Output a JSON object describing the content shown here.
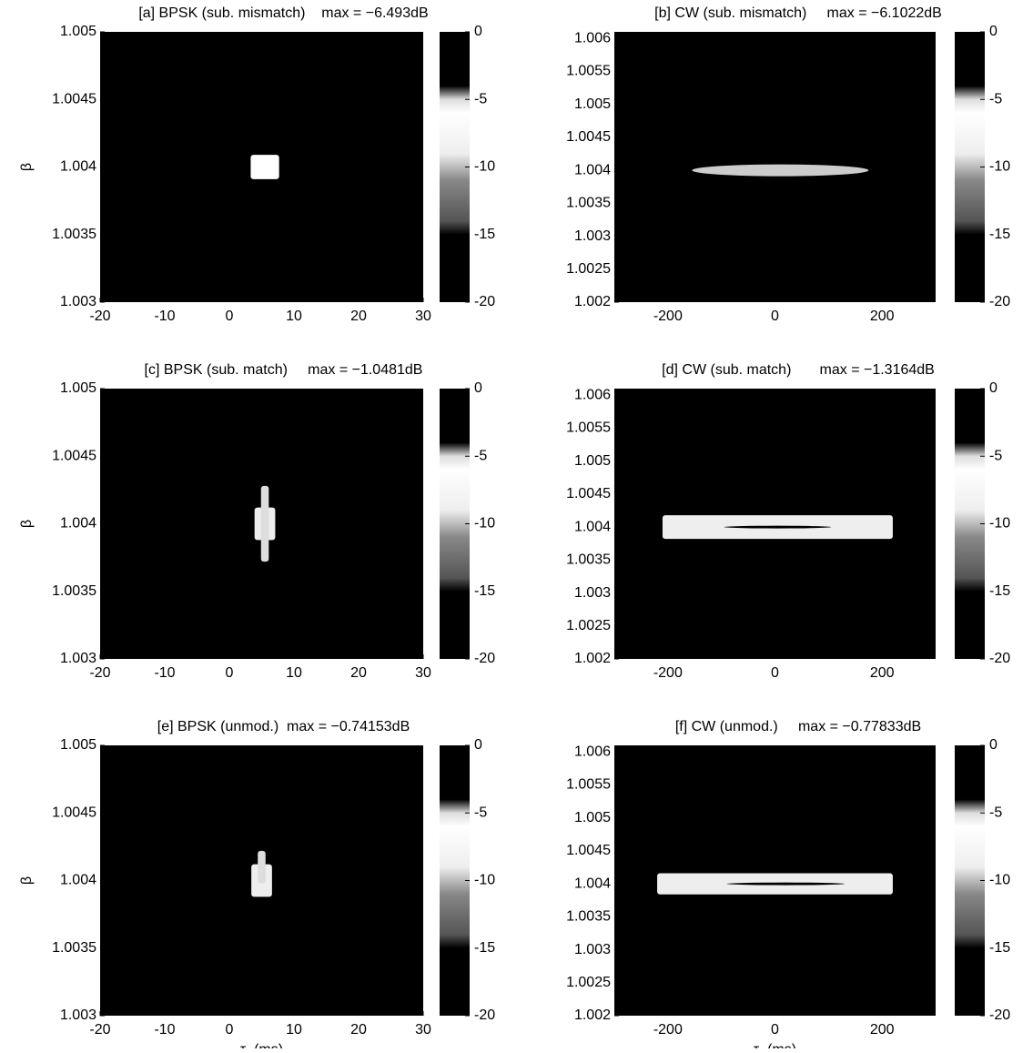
{
  "chart_data": [
    {
      "type": "heatmap",
      "title": "[a] BPSK (sub. mismatch)    max = −6.493dB",
      "xlim": [
        -20,
        30
      ],
      "xticks": [
        -20,
        -10,
        0,
        10,
        20,
        30
      ],
      "ylim": [
        1.003,
        1.005
      ],
      "yticks": [
        1.003,
        1.0035,
        1.004,
        1.0045,
        1.005
      ],
      "ylabel": "β",
      "clim": [
        -20,
        0
      ],
      "cticks": [
        0,
        -5,
        -10,
        -15,
        -20
      ]
    },
    {
      "type": "heatmap",
      "title": "[b] CW (sub. mismatch)     max = −6.1022dB",
      "xlim": [
        -300,
        300
      ],
      "xticks": [
        -200,
        0,
        200
      ],
      "ylim": [
        1.002,
        1.0061
      ],
      "yticks": [
        1.002,
        1.0025,
        1.003,
        1.0035,
        1.004,
        1.0045,
        1.005,
        1.0055,
        1.006
      ],
      "clim": [
        -20,
        0
      ],
      "cticks": [
        0,
        -5,
        -10,
        -15,
        -20
      ]
    },
    {
      "type": "heatmap",
      "title": "[c] BPSK (sub. match)     max = −1.0481dB",
      "xlim": [
        -20,
        30
      ],
      "xticks": [
        -20,
        -10,
        0,
        10,
        20,
        30
      ],
      "ylim": [
        1.003,
        1.005
      ],
      "yticks": [
        1.003,
        1.0035,
        1.004,
        1.0045,
        1.005
      ],
      "ylabel": "β",
      "clim": [
        -20,
        0
      ],
      "cticks": [
        0,
        -5,
        -10,
        -15,
        -20
      ]
    },
    {
      "type": "heatmap",
      "title": "[d] CW (sub. match)       max = −1.3164dB",
      "xlim": [
        -300,
        300
      ],
      "xticks": [
        -200,
        0,
        200
      ],
      "ylim": [
        1.002,
        1.0061
      ],
      "yticks": [
        1.002,
        1.0025,
        1.003,
        1.0035,
        1.004,
        1.0045,
        1.005,
        1.0055,
        1.006
      ],
      "clim": [
        -20,
        0
      ],
      "cticks": [
        0,
        -5,
        -10,
        -15,
        -20
      ]
    },
    {
      "type": "heatmap",
      "title": "[e] BPSK (unmod.)  max = −0.74153dB",
      "xlim": [
        -20,
        30
      ],
      "xticks": [
        -20,
        -10,
        0,
        10,
        20,
        30
      ],
      "ylim": [
        1.003,
        1.005
      ],
      "yticks": [
        1.003,
        1.0035,
        1.004,
        1.0045,
        1.005
      ],
      "ylabel": "β",
      "xlabel": "τ  (ms)",
      "clim": [
        -20,
        0
      ],
      "cticks": [
        0,
        -5,
        -10,
        -15,
        -20
      ]
    },
    {
      "type": "heatmap",
      "title": "[f] CW (unmod.)     max = −0.77833dB",
      "xlim": [
        -300,
        300
      ],
      "xticks": [
        -200,
        0,
        200
      ],
      "ylim": [
        1.002,
        1.0061
      ],
      "yticks": [
        1.002,
        1.0025,
        1.003,
        1.0035,
        1.004,
        1.0045,
        1.005,
        1.0055,
        1.006
      ],
      "xlabel": "τ  (ms)",
      "clim": [
        -20,
        0
      ],
      "cticks": [
        0,
        -5,
        -10,
        -15,
        -20
      ]
    }
  ]
}
